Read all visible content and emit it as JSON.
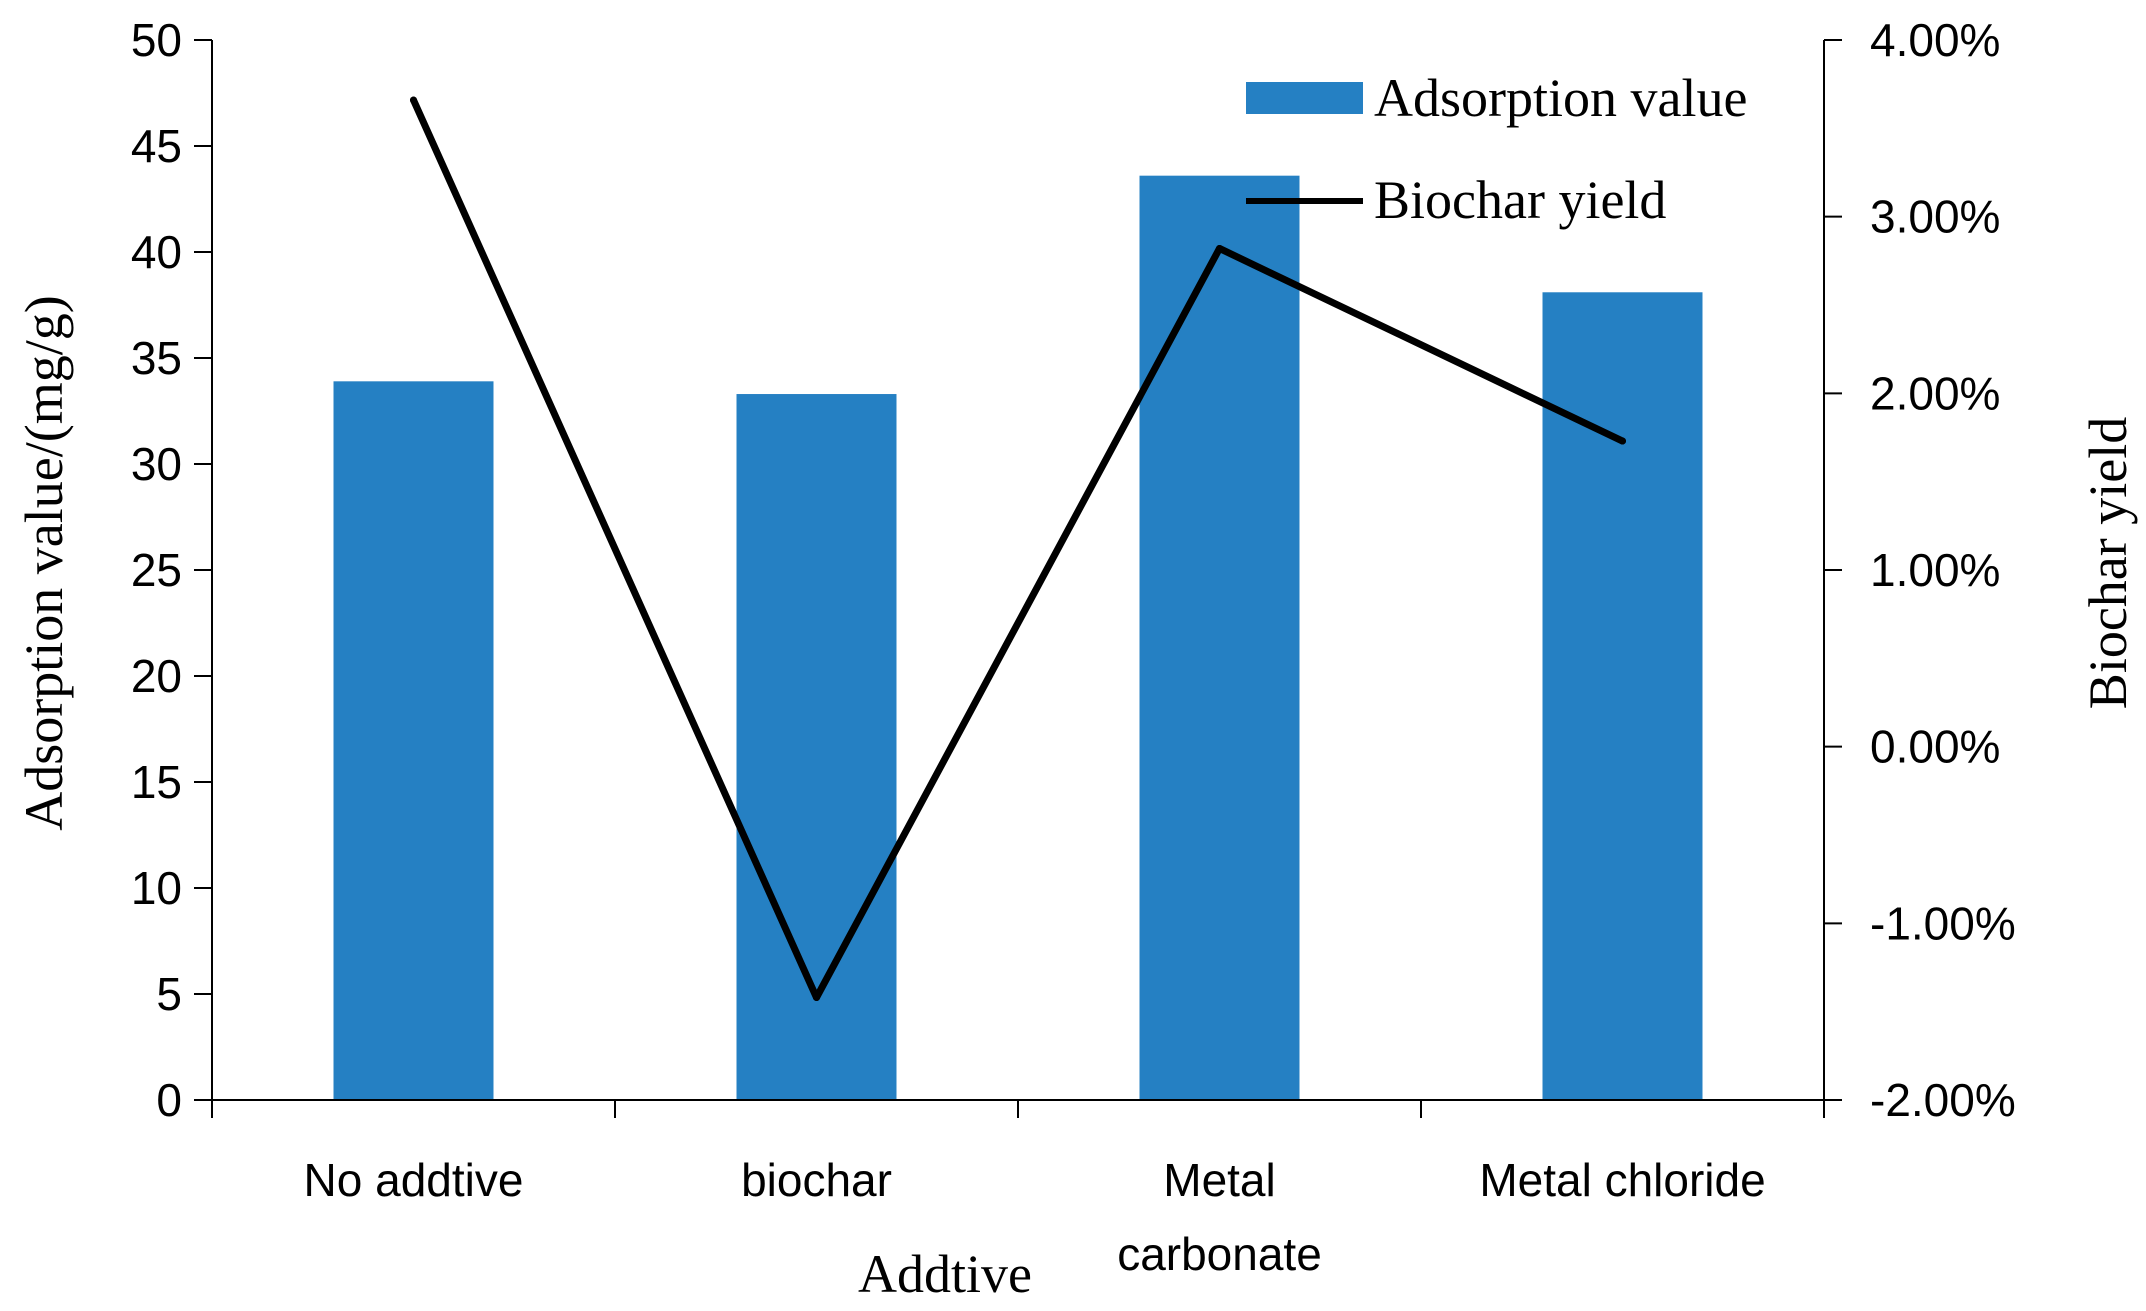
{
  "chart_data": {
    "type": "bar",
    "categories": [
      [
        "No addtive"
      ],
      [
        "biochar"
      ],
      [
        "Metal",
        "carbonate"
      ],
      [
        "Metal chloride"
      ]
    ],
    "xlabel": "Addtive",
    "ylabel": "Adsorption value/(mg/g)",
    "y2label": "Biochar yield",
    "ylim": [
      0,
      50
    ],
    "y2lim": [
      -0.02,
      0.04
    ],
    "yticks": [
      "0",
      "5",
      "10",
      "15",
      "20",
      "25",
      "30",
      "35",
      "40",
      "45",
      "50"
    ],
    "y2ticks": [
      "-2.00%",
      "-1.00%",
      "0.00%",
      "1.00%",
      "2.00%",
      "3.00%",
      "4.00%"
    ],
    "legend_position": "top-right",
    "series": [
      {
        "name": "Adsorption value",
        "type": "bar",
        "axis": "left",
        "color": "#2580c3",
        "values": [
          33.9,
          33.3,
          43.6,
          38.1
        ]
      },
      {
        "name": "Biochar yield",
        "type": "line",
        "axis": "right",
        "color": "#000000",
        "values": [
          0.0366,
          -0.0142,
          0.0282,
          0.0173
        ]
      }
    ]
  }
}
